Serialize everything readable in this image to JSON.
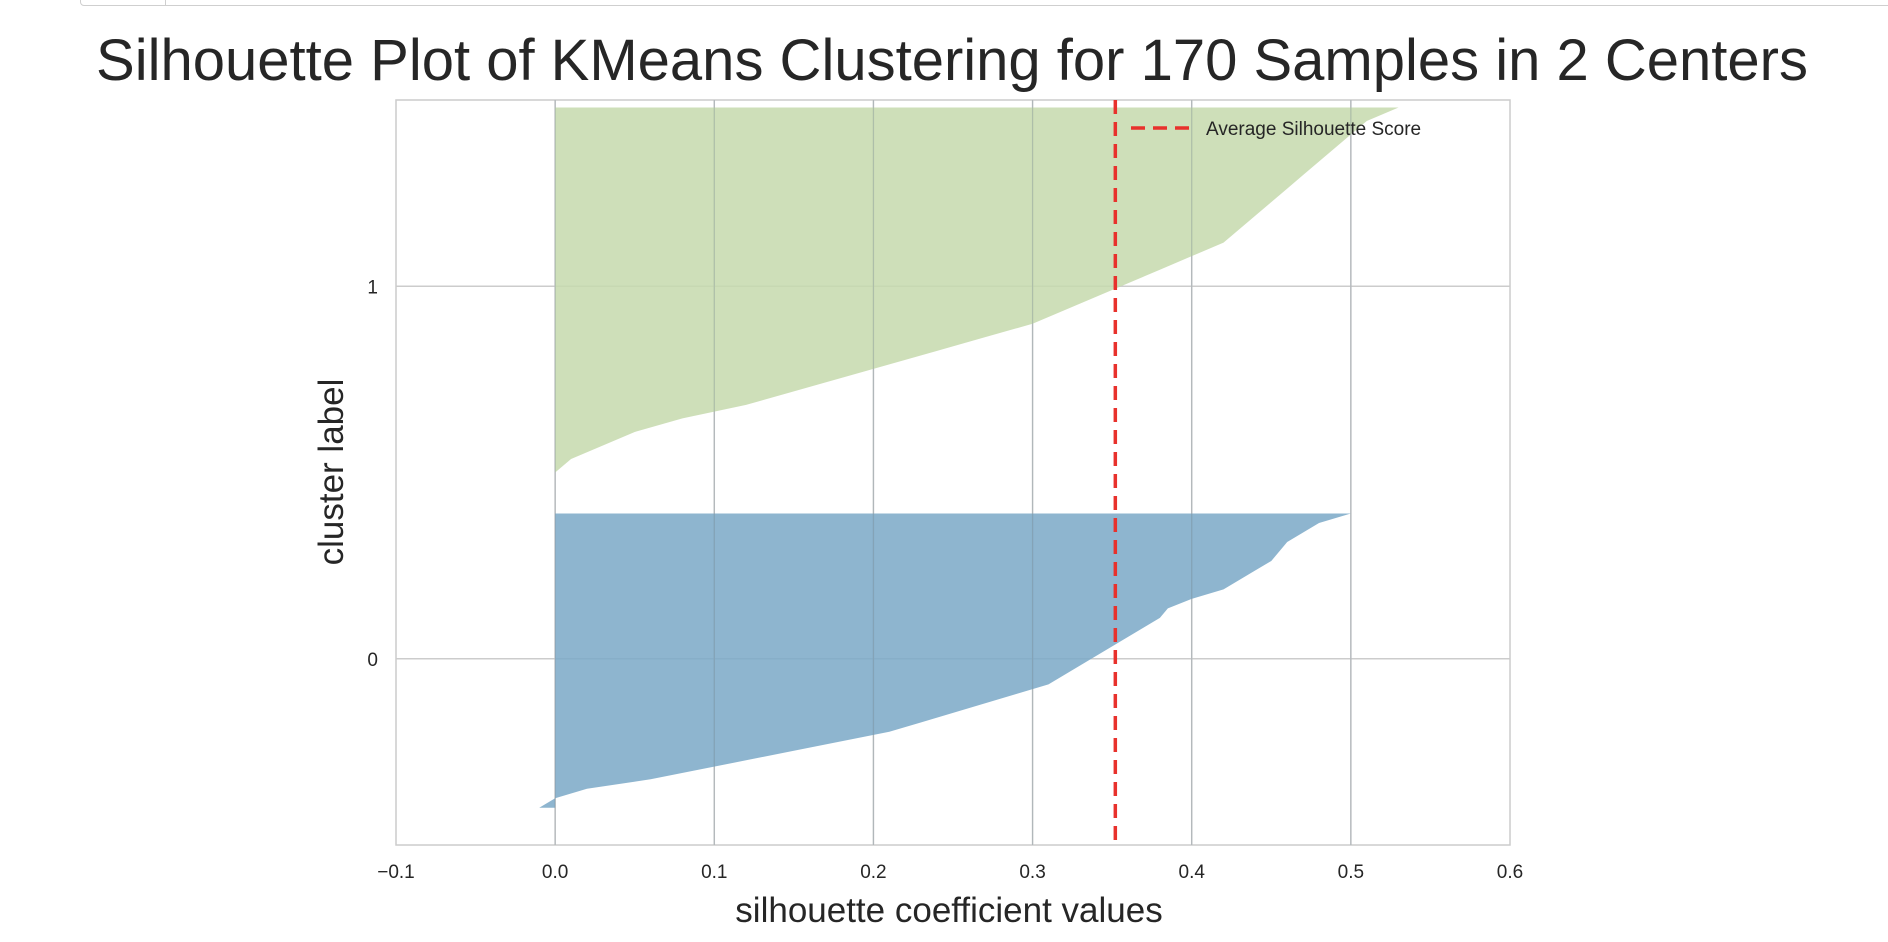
{
  "chart_data": {
    "type": "area",
    "title": "Silhouette Plot of KMeans Clustering for 170 Samples in 2 Centers",
    "xlabel": "silhouette coefficient values",
    "ylabel": "cluster label",
    "xlim": [
      -0.1,
      0.6
    ],
    "x_ticks": [
      -0.1,
      0.0,
      0.1,
      0.2,
      0.3,
      0.4,
      0.5,
      0.6
    ],
    "x_tick_labels": [
      "−0.1",
      "0.0",
      "0.1",
      "0.2",
      "0.3",
      "0.4",
      "0.5",
      "0.6"
    ],
    "y_ticks": [
      0,
      1
    ],
    "y_tick_labels": [
      "0",
      "1"
    ],
    "grid": true,
    "legend_placement": "top-right",
    "average_silhouette_score": 0.352,
    "average_line": {
      "label": "Average Silhouette Score",
      "color": "#e8312c",
      "style": "dashed"
    },
    "clusters": [
      {
        "label": "0",
        "color": "#7aa8c7",
        "band_y": [
          -0.4,
          0.39
        ],
        "silhouette_values_sorted_desc": [
          0.5,
          0.48,
          0.47,
          0.46,
          0.455,
          0.45,
          0.44,
          0.43,
          0.42,
          0.4,
          0.385,
          0.38,
          0.37,
          0.36,
          0.35,
          0.34,
          0.33,
          0.32,
          0.31,
          0.29,
          0.27,
          0.25,
          0.23,
          0.21,
          0.18,
          0.15,
          0.12,
          0.09,
          0.06,
          0.02,
          0.0,
          -0.01
        ]
      },
      {
        "label": "1",
        "color": "#c5d9ad",
        "band_y": [
          0.5,
          1.48
        ],
        "silhouette_values_sorted_desc": [
          0.53,
          0.51,
          0.5,
          0.49,
          0.48,
          0.47,
          0.46,
          0.45,
          0.44,
          0.43,
          0.42,
          0.4,
          0.38,
          0.36,
          0.34,
          0.32,
          0.3,
          0.27,
          0.24,
          0.21,
          0.18,
          0.15,
          0.12,
          0.08,
          0.05,
          0.03,
          0.01,
          0.0
        ]
      }
    ]
  }
}
